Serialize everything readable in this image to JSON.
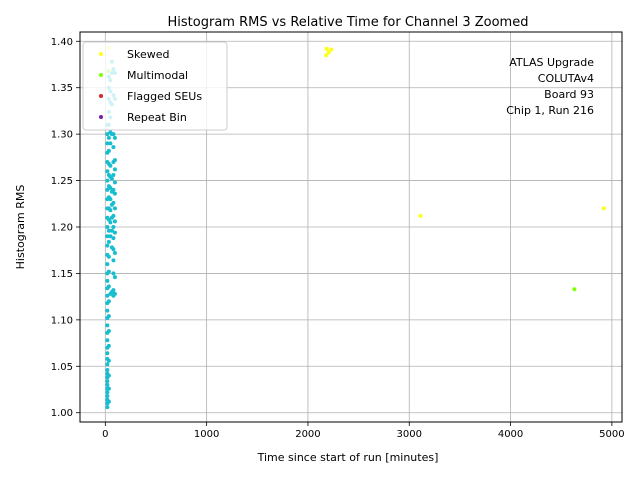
{
  "chart_data": {
    "type": "scatter",
    "title": "Histogram RMS vs Relative Time for Channel 3 Zoomed",
    "xlabel": "Time since start of run [minutes]",
    "ylabel": "Histogram RMS",
    "xlim": [
      -250,
      5100
    ],
    "ylim": [
      0.99,
      1.41
    ],
    "xticks": [
      0,
      1000,
      2000,
      3000,
      4000,
      5000
    ],
    "yticks": [
      1.0,
      1.05,
      1.1,
      1.15,
      1.2,
      1.25,
      1.3,
      1.35,
      1.4
    ],
    "grid": true,
    "legend_position": "top-left",
    "annotation": [
      "ATLAS Upgrade",
      "COLUTAv4",
      "Board 93",
      "Chip 1, Run 216"
    ],
    "series": [
      {
        "name": "",
        "color": "#17becf",
        "points": [
          [
            20,
            1.006
          ],
          [
            20,
            1.01
          ],
          [
            20,
            1.014
          ],
          [
            20,
            1.018
          ],
          [
            20,
            1.022
          ],
          [
            20,
            1.026
          ],
          [
            20,
            1.03
          ],
          [
            20,
            1.034
          ],
          [
            20,
            1.038
          ],
          [
            20,
            1.042
          ],
          [
            20,
            1.046
          ],
          [
            20,
            1.052
          ],
          [
            20,
            1.058
          ],
          [
            20,
            1.064
          ],
          [
            20,
            1.07
          ],
          [
            20,
            1.078
          ],
          [
            20,
            1.086
          ],
          [
            20,
            1.094
          ],
          [
            20,
            1.102
          ],
          [
            20,
            1.11
          ],
          [
            20,
            1.118
          ],
          [
            20,
            1.126
          ],
          [
            20,
            1.134
          ],
          [
            20,
            1.142
          ],
          [
            20,
            1.15
          ],
          [
            20,
            1.16
          ],
          [
            20,
            1.17
          ],
          [
            20,
            1.18
          ],
          [
            20,
            1.19
          ],
          [
            20,
            1.2
          ],
          [
            20,
            1.21
          ],
          [
            20,
            1.22
          ],
          [
            20,
            1.23
          ],
          [
            20,
            1.24
          ],
          [
            20,
            1.25
          ],
          [
            20,
            1.26
          ],
          [
            20,
            1.27
          ],
          [
            20,
            1.28
          ],
          [
            20,
            1.29
          ],
          [
            20,
            1.3
          ],
          [
            20,
            1.31
          ],
          [
            35,
            1.012
          ],
          [
            35,
            1.026
          ],
          [
            35,
            1.04
          ],
          [
            35,
            1.056
          ],
          [
            35,
            1.072
          ],
          [
            35,
            1.088
          ],
          [
            35,
            1.104
          ],
          [
            35,
            1.12
          ],
          [
            35,
            1.136
          ],
          [
            35,
            1.152
          ],
          [
            35,
            1.168
          ],
          [
            35,
            1.184
          ],
          [
            35,
            1.196
          ],
          [
            35,
            1.208
          ],
          [
            35,
            1.22
          ],
          [
            35,
            1.232
          ],
          [
            35,
            1.244
          ],
          [
            35,
            1.256
          ],
          [
            35,
            1.268
          ],
          [
            35,
            1.282
          ],
          [
            35,
            1.296
          ],
          [
            35,
            1.31
          ],
          [
            35,
            1.324
          ],
          [
            35,
            1.338
          ],
          [
            35,
            1.35
          ],
          [
            35,
            1.362
          ],
          [
            50,
            1.128
          ],
          [
            50,
            1.19
          ],
          [
            50,
            1.205
          ],
          [
            50,
            1.218
          ],
          [
            50,
            1.23
          ],
          [
            50,
            1.242
          ],
          [
            50,
            1.254
          ],
          [
            50,
            1.266
          ],
          [
            50,
            1.29
          ],
          [
            50,
            1.302
          ],
          [
            50,
            1.318
          ],
          [
            50,
            1.334
          ],
          [
            50,
            1.346
          ],
          [
            50,
            1.358
          ],
          [
            65,
            1.13
          ],
          [
            65,
            1.178
          ],
          [
            65,
            1.196
          ],
          [
            65,
            1.21
          ],
          [
            65,
            1.224
          ],
          [
            65,
            1.238
          ],
          [
            65,
            1.252
          ],
          [
            65,
            1.3
          ],
          [
            65,
            1.332
          ],
          [
            65,
            1.366
          ],
          [
            65,
            1.378
          ],
          [
            80,
            1.126
          ],
          [
            80,
            1.132
          ],
          [
            80,
            1.15
          ],
          [
            80,
            1.164
          ],
          [
            80,
            1.176
          ],
          [
            80,
            1.188
          ],
          [
            80,
            1.2
          ],
          [
            80,
            1.212
          ],
          [
            80,
            1.226
          ],
          [
            80,
            1.24
          ],
          [
            80,
            1.256
          ],
          [
            80,
            1.27
          ],
          [
            80,
            1.286
          ],
          [
            80,
            1.3
          ],
          [
            80,
            1.342
          ],
          [
            80,
            1.37
          ],
          [
            95,
            1.128
          ],
          [
            95,
            1.146
          ],
          [
            95,
            1.172
          ],
          [
            95,
            1.194
          ],
          [
            95,
            1.206
          ],
          [
            95,
            1.22
          ],
          [
            95,
            1.236
          ],
          [
            95,
            1.248
          ],
          [
            95,
            1.262
          ],
          [
            95,
            1.272
          ],
          [
            95,
            1.296
          ],
          [
            95,
            1.338
          ],
          [
            95,
            1.366
          ]
        ]
      },
      {
        "name": "Skewed",
        "color": "#ffff14",
        "points": [
          [
            2185,
            1.392
          ],
          [
            2205,
            1.388
          ],
          [
            2230,
            1.391
          ],
          [
            2180,
            1.385
          ],
          [
            3110,
            1.212
          ],
          [
            4920,
            1.22
          ],
          [
            30,
            1.393
          ]
        ]
      },
      {
        "name": "Multimodal",
        "color": "#7fff00",
        "points": [
          [
            4630,
            1.133
          ],
          [
            30,
            1.368
          ]
        ]
      },
      {
        "name": "Flagged SEUs",
        "color": "#d62728",
        "points": []
      },
      {
        "name": "Repeat Bin",
        "color": "#7b1fa2",
        "points": []
      }
    ]
  }
}
